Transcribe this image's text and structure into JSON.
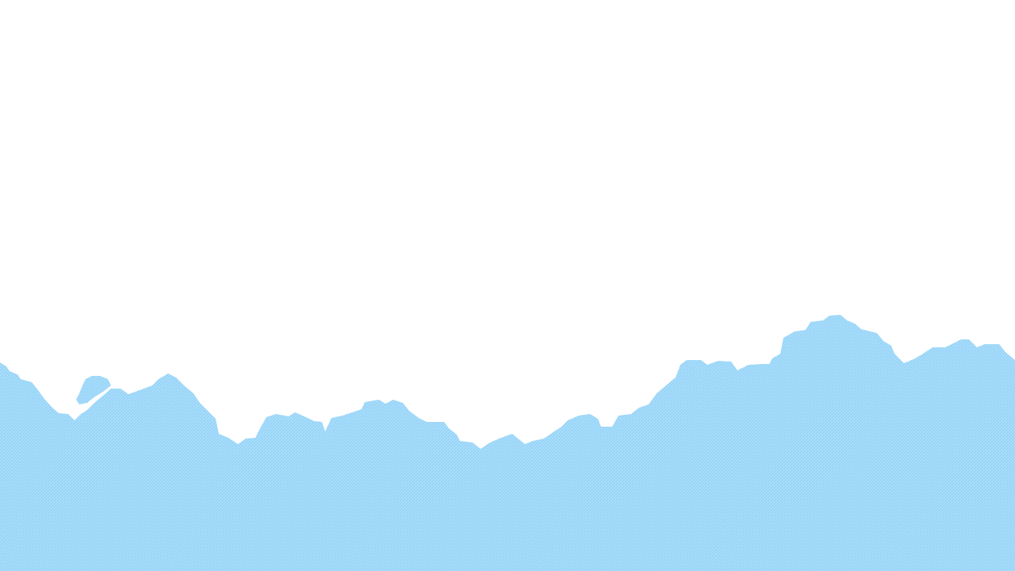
{
  "scene": {
    "background_color": "#ffffff",
    "terrain_color": "#a9ddfa",
    "terrain_pattern_color": "#8fd0f7"
  }
}
